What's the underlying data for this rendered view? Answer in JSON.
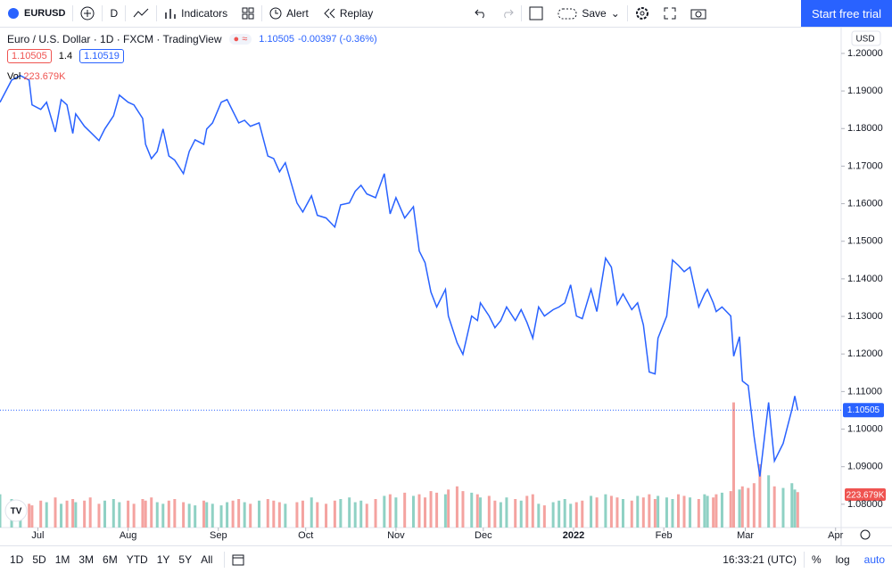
{
  "toolbar": {
    "symbol": "EURUSD",
    "interval": "D",
    "indicators": "Indicators",
    "alert": "Alert",
    "replay": "Replay",
    "save": "Save",
    "cta": "Start free trial"
  },
  "legend": {
    "title": "Euro / U.S. Dollar · 1D · FXCM · TradingView",
    "change": "-0.00397 (-0.36%)",
    "bid": "1.10505",
    "spread": "1.4",
    "ask": "1.10519",
    "vol_name": "Vol",
    "vol_value": "223.679K"
  },
  "currency": "USD",
  "bottom": {
    "ranges": [
      "1D",
      "5D",
      "1M",
      "3M",
      "6M",
      "YTD",
      "1Y",
      "5Y",
      "All"
    ],
    "time": "16:33:21 (UTC)",
    "percent": "%",
    "log": "log",
    "auto": "auto"
  },
  "chart_data": {
    "type": "line",
    "x": [
      -13,
      -9,
      -6,
      -3,
      -2,
      1,
      3,
      6,
      8,
      10,
      12,
      13,
      16,
      18,
      21,
      23,
      26,
      28,
      31,
      33,
      36,
      37,
      39,
      41,
      43,
      45,
      47,
      50,
      52,
      54,
      57,
      58,
      60,
      63,
      65,
      67,
      69,
      71,
      73,
      76,
      79,
      81,
      83,
      85,
      89,
      91,
      94,
      96,
      99,
      102,
      104,
      107,
      109,
      111,
      113,
      116,
      119,
      121,
      123,
      126,
      129,
      131,
      133,
      135,
      137,
      140,
      141,
      144,
      146,
      149,
      151,
      152,
      155,
      157,
      159,
      161,
      164,
      166,
      168,
      170,
      172,
      174,
      177,
      179,
      181,
      183,
      185,
      187,
      190,
      192,
      195,
      197,
      199,
      201,
      204,
      206,
      208,
      210,
      212,
      213,
      216,
      218,
      220,
      222,
      224,
      227,
      229,
      230,
      232,
      233,
      235,
      238,
      239,
      241,
      242,
      244,
      246,
      248,
      251,
      253,
      256,
      259,
      260,
      261
    ],
    "series": [
      {
        "name": "EURUSD",
        "color": "#2962ff",
        "values": [
          1.187,
          1.1929,
          1.1941,
          1.1929,
          1.1863,
          1.1851,
          1.187,
          1.1791,
          1.1877,
          1.1863,
          1.1787,
          1.1839,
          1.1806,
          1.1791,
          1.1768,
          1.1799,
          1.1834,
          1.1889,
          1.187,
          1.1863,
          1.1827,
          1.1758,
          1.172,
          1.1739,
          1.1799,
          1.1727,
          1.1716,
          1.168,
          1.1739,
          1.177,
          1.1758,
          1.1799,
          1.1815,
          1.187,
          1.1877,
          1.1846,
          1.1815,
          1.1822,
          1.1806,
          1.1815,
          1.1727,
          1.172,
          1.1685,
          1.1709,
          1.1602,
          1.1578,
          1.1621,
          1.1569,
          1.1562,
          1.1538,
          1.1597,
          1.1602,
          1.1633,
          1.1649,
          1.1626,
          1.1616,
          1.168,
          1.1573,
          1.1616,
          1.1562,
          1.1592,
          1.1474,
          1.1443,
          1.1365,
          1.1325,
          1.1372,
          1.1301,
          1.123,
          1.1199,
          1.1301,
          1.1289,
          1.1336,
          1.1301,
          1.127,
          1.1289,
          1.1325,
          1.1289,
          1.1318,
          1.1284,
          1.1242,
          1.1325,
          1.1301,
          1.1318,
          1.1325,
          1.1336,
          1.1384,
          1.1301,
          1.1294,
          1.1372,
          1.1313,
          1.1455,
          1.1431,
          1.1332,
          1.136,
          1.1318,
          1.1336,
          1.1277,
          1.1152,
          1.1147,
          1.1242,
          1.1301,
          1.145,
          1.1436,
          1.1419,
          1.1431,
          1.1325,
          1.136,
          1.1372,
          1.1336,
          1.1313,
          1.1325,
          1.1301,
          1.1194,
          1.1246,
          1.1128,
          1.1116,
          1.0981,
          1.0874,
          1.1071,
          1.0915,
          1.0962,
          1.1052,
          1.1088,
          1.10505
        ]
      },
      {
        "name": "Vol",
        "axis": "y2",
        "up_color": "#8fd1c4",
        "down_color": "#f4a3a0",
        "values": [
          210,
          180,
          160,
          150,
          140,
          170,
          160,
          190,
          150,
          170,
          180,
          160,
          170,
          190,
          150,
          170,
          180,
          160,
          170,
          150,
          180,
          170,
          190,
          160,
          150,
          170,
          180,
          160,
          150,
          140,
          170,
          160,
          150,
          140,
          160,
          170,
          180,
          160,
          150,
          170,
          180,
          170,
          160,
          150,
          160,
          170,
          190,
          160,
          150,
          170,
          180,
          190,
          160,
          170,
          150,
          180,
          200,
          210,
          190,
          220,
          200,
          210,
          190,
          230,
          220,
          210,
          240,
          260,
          230,
          220,
          210,
          190,
          200,
          170,
          160,
          190,
          180,
          170,
          200,
          210,
          150,
          140,
          160,
          170,
          180,
          150,
          160,
          170,
          200,
          190,
          210,
          200,
          190,
          180,
          170,
          200,
          190,
          210,
          180,
          200,
          190,
          180,
          210,
          200,
          190,
          180,
          210,
          200,
          190,
          210,
          220,
          230,
          790,
          240,
          260,
          250,
          280,
          400,
          330,
          260,
          250,
          280,
          240,
          223.679
        ]
      }
    ],
    "xlim": [
      -13,
      275
    ],
    "xticks": [
      {
        "value": 0,
        "label": "Jul"
      },
      {
        "value": 31,
        "label": "Aug"
      },
      {
        "value": 62,
        "label": "Sep"
      },
      {
        "value": 92,
        "label": "Oct"
      },
      {
        "value": 123,
        "label": "Nov"
      },
      {
        "value": 153,
        "label": "Dec"
      },
      {
        "value": 184,
        "label": "2022"
      },
      {
        "value": 215,
        "label": "Feb"
      },
      {
        "value": 243,
        "label": "Mar"
      },
      {
        "value": 274,
        "label": "Apr"
      }
    ],
    "ylim": [
      1.0738,
      1.2071
    ],
    "yticks": [
      {
        "value": 1.08,
        "label": "1.08000"
      },
      {
        "value": 1.09,
        "label": "1.09000"
      },
      {
        "value": 1.1,
        "label": "1.10000"
      },
      {
        "value": 1.11,
        "label": "1.11000"
      },
      {
        "value": 1.12,
        "label": "1.12000"
      },
      {
        "value": 1.13,
        "label": "1.13000"
      },
      {
        "value": 1.14,
        "label": "1.14000"
      },
      {
        "value": 1.15,
        "label": "1.15000"
      },
      {
        "value": 1.16,
        "label": "1.16000"
      },
      {
        "value": 1.17,
        "label": "1.17000"
      },
      {
        "value": 1.18,
        "label": "1.18000"
      },
      {
        "value": 1.19,
        "label": "1.19000"
      },
      {
        "value": 1.2,
        "label": "1.20000"
      }
    ],
    "y2lim": [
      0,
      900
    ]
  }
}
